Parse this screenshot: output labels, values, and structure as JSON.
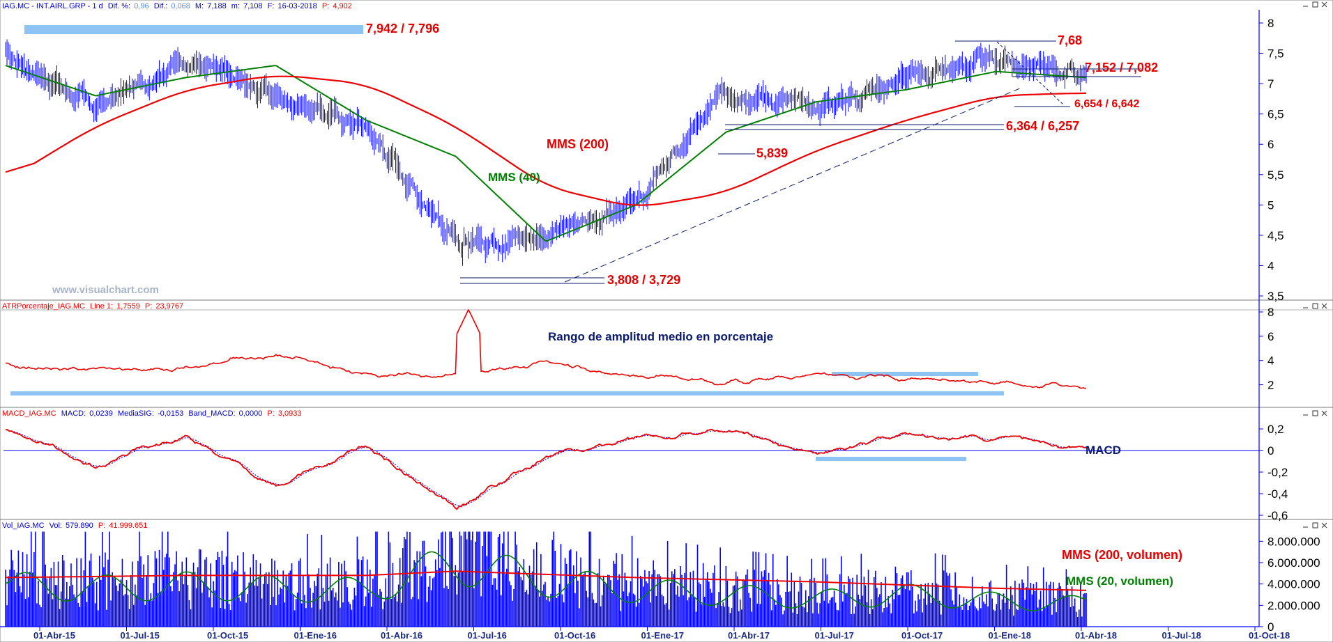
{
  "colors": {
    "price": "#0000ff",
    "mms_red": "#ee0000",
    "mms_green": "#008000",
    "highlight": "#8ec4f4",
    "navy": "#0a1a6e",
    "axis": "#0000ff"
  },
  "watermark": "www.visualchart.com",
  "panels": {
    "price": {
      "header": {
        "symbol": "IAG.MC - INT.AIRL.GRP -  1 d",
        "dif_pct_label": "Dif. %:",
        "dif_pct": "0,96",
        "dif_label": "Dif.:",
        "dif": "0,068",
        "max_label": "M:",
        "max": "7,188",
        "min_label": "m:",
        "min": "7,108",
        "date_label": "F:",
        "date": "16-03-2018",
        "p_label": "P:",
        "p": "4,902"
      },
      "annotations": {
        "top_range": "7,942 / 7,796",
        "resist": "7,68",
        "range2": "7,152 / 7,082",
        "range3": "6,654 / 6,642",
        "support1": "6,364 / 6,257",
        "support2": "5,839",
        "bottom": "3,808 / 3,729",
        "mms200": "MMS (200)",
        "mms40": "MMS (40)"
      },
      "y_ticks": [
        "8",
        "7,5",
        "7",
        "6,5",
        "6",
        "5,5",
        "5",
        "4,5",
        "4",
        "3,5"
      ]
    },
    "atr": {
      "header": {
        "name": "ATRPorcentaje_IAG.MC",
        "line_label": "Line 1:",
        "line": "1,7559",
        "p_label": "P:",
        "p": "23,9767"
      },
      "title": "Rango de amplitud medio en porcentaje",
      "y_ticks": [
        "8",
        "6",
        "4",
        "2"
      ]
    },
    "macd": {
      "header": {
        "name": "MACD_IAG.MC",
        "macd_label": "MACD:",
        "macd": "0,0239",
        "sig_label": "MediaSIG:",
        "sig": "-0,0153",
        "band_label": "Band_MACD:",
        "band": "0,0000",
        "p_label": "P:",
        "p": "3,0933"
      },
      "title": "MACD",
      "y_ticks": [
        "0,2",
        "0",
        "-0,2",
        "-0,4",
        "-0,6"
      ]
    },
    "volume": {
      "header": {
        "name": "Vol_IAG.MC",
        "vol_label": "Vol:",
        "vol": "579.890",
        "p_label": "P:",
        "p": "41.999.651"
      },
      "legend_red": "MMS (200, volumen)",
      "legend_green": "MMS (20, volumen)",
      "y_ticks": [
        "8.000.000",
        "6.000.000",
        "4.000.000",
        "2.000.000",
        "0"
      ]
    }
  },
  "x_ticks": [
    "01-Abr-15",
    "01-Jul-15",
    "01-Oct-15",
    "01-Ene-16",
    "01-Abr-16",
    "01-Jul-16",
    "01-Oct-16",
    "01-Ene-17",
    "01-Abr-17",
    "01-Jul-17",
    "01-Oct-17",
    "01-Ene-18",
    "01-Abr-18",
    "01-Jul-18",
    "01-Oct-18"
  ],
  "chart_data": {
    "type": "line",
    "title": "IAG.MC - INT.AIRL.GRP - 1 d",
    "x": [
      "01-Abr-15",
      "01-Jul-15",
      "01-Oct-15",
      "01-Ene-16",
      "01-Abr-16",
      "01-Jul-16",
      "01-Oct-16",
      "01-Ene-17",
      "01-Abr-17",
      "01-Jul-17",
      "01-Oct-17",
      "01-Ene-18",
      "16-03-2018"
    ],
    "series": [
      {
        "name": "IAG.MC",
        "values": [
          7.5,
          6.6,
          7.4,
          6.8,
          6.3,
          4.4,
          4.5,
          5.0,
          6.9,
          6.6,
          7.1,
          7.4,
          7.15
        ]
      },
      {
        "name": "MMS (40)",
        "values": [
          7.3,
          6.8,
          7.1,
          7.3,
          6.4,
          5.8,
          4.4,
          5.0,
          6.2,
          6.7,
          6.9,
          7.2,
          7.1
        ]
      },
      {
        "name": "MMS (200)",
        "values": [
          5.4,
          6.3,
          6.9,
          7.15,
          7.0,
          6.3,
          5.3,
          4.95,
          5.2,
          5.9,
          6.4,
          6.8,
          6.85
        ]
      }
    ],
    "ylim": [
      3.5,
      8.0
    ],
    "levels": [
      7.942,
      7.796,
      7.68,
      7.152,
      7.082,
      6.654,
      6.642,
      6.364,
      6.257,
      5.839,
      3.808,
      3.729
    ],
    "subcharts": [
      {
        "name": "ATRPorcentaje_IAG.MC",
        "title": "Rango de amplitud medio en porcentaje",
        "ylim": [
          1,
          8
        ],
        "x": [
          "01-Abr-15",
          "01-Jul-15",
          "01-Oct-15",
          "01-Ene-16",
          "01-Abr-16",
          "01-Jul-16",
          "01-Oct-16",
          "01-Ene-17",
          "01-Abr-17",
          "01-Jul-17",
          "01-Oct-17",
          "01-Ene-18",
          "16-03-2018"
        ],
        "values": [
          3.5,
          3.2,
          3.3,
          4.5,
          2.8,
          2.8,
          3.8,
          2.8,
          2.2,
          2.8,
          2.6,
          2.2,
          1.76
        ]
      },
      {
        "name": "MACD_IAG.MC",
        "title": "MACD",
        "ylim": [
          -0.6,
          0.3
        ],
        "x": [
          "01-Abr-15",
          "01-Jul-15",
          "01-Oct-15",
          "01-Ene-16",
          "01-Abr-16",
          "01-Jul-16",
          "01-Oct-16",
          "01-Ene-17",
          "01-Abr-17",
          "01-Jul-17",
          "01-Oct-17",
          "01-Ene-18",
          "16-03-2018"
        ],
        "values": [
          0.2,
          -0.15,
          0.15,
          -0.33,
          0.05,
          -0.55,
          -0.05,
          0.1,
          0.18,
          -0.02,
          0.15,
          0.12,
          0.024
        ]
      },
      {
        "name": "Vol_IAG.MC",
        "ylim": [
          0,
          9000000
        ],
        "x": [
          "01-Abr-15",
          "01-Jul-15",
          "01-Oct-15",
          "01-Ene-16",
          "01-Abr-16",
          "01-Jul-16",
          "01-Oct-16",
          "01-Ene-17",
          "01-Abr-17",
          "01-Jul-17",
          "01-Oct-17",
          "01-Ene-18",
          "16-03-2018"
        ],
        "series": [
          {
            "name": "MMS (200, volumen)",
            "values": [
              4600000,
              4700000,
              4800000,
              4800000,
              4800000,
              5200000,
              4900000,
              4600000,
              4400000,
              4200000,
              3900000,
              3600000,
              3400000
            ]
          },
          {
            "name": "MMS (20, volumen)",
            "values": [
              4500000,
              4200000,
              4500000,
              4200000,
              4000000,
              7000000,
              5000000,
              4000000,
              3500000,
              3000000,
              3500000,
              2800000,
              2500000
            ]
          }
        ]
      }
    ]
  }
}
